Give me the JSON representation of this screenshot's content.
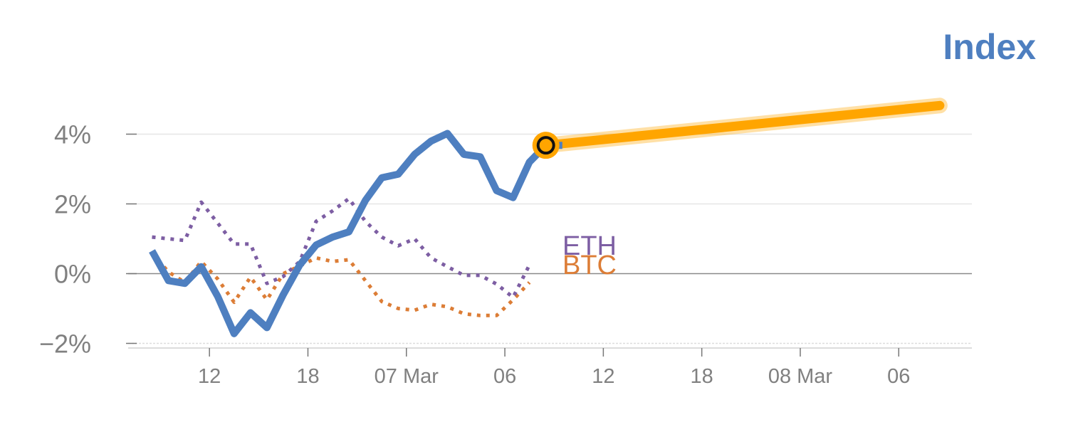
{
  "chart_data": {
    "type": "line",
    "title": "Index",
    "xlabel": "",
    "ylabel": "",
    "ylim": [
      -2.05,
      4.1
    ],
    "y_ticks": [
      4,
      2,
      0,
      -2
    ],
    "y_tick_labels": [
      "4%",
      "2%",
      "0%",
      "−2%"
    ],
    "x_ticks": [
      5,
      11,
      17,
      23,
      29,
      35,
      41,
      47,
      53
    ],
    "x_tick_labels": [
      "12",
      "18",
      "07 Mar",
      "06",
      "12",
      "18",
      "08 Mar",
      "06"
    ],
    "xlim": [
      0,
      51
    ],
    "grid": true,
    "legend": "none",
    "colors": {
      "index": "#4e7fc0",
      "forecast": "#ffa500",
      "eth": "#7d5ea3",
      "btc": "#dc7d36",
      "axis": "#808080",
      "grid": "#e6e6e6"
    },
    "series": [
      {
        "key": "index",
        "style": "solid",
        "x": [
          1.5,
          2.5,
          3.5,
          4.5,
          5.5,
          6.5,
          7.5,
          8.5,
          9.5,
          10.5,
          11.5,
          12.5,
          13.5,
          14.5,
          15.5,
          16.5,
          17.5,
          18.5,
          19.5,
          20.5,
          21.5,
          22.5,
          23.5,
          24.5,
          25.5,
          26.5
        ],
        "values": [
          0.65,
          -0.2,
          -0.28,
          0.2,
          -0.65,
          -1.72,
          -1.12,
          -1.55,
          -0.6,
          0.25,
          0.82,
          1.05,
          1.2,
          2.1,
          2.75,
          2.85,
          3.42,
          3.8,
          4.02,
          3.42,
          3.35,
          2.38,
          2.18,
          3.2,
          3.68,
          3.68
        ]
      },
      {
        "key": "forecast",
        "style": "band",
        "x": [
          25.5,
          49.5
        ],
        "values": [
          3.68,
          4.82
        ]
      },
      {
        "name": "ETH",
        "key": "eth",
        "style": "dotted",
        "x": [
          1.5,
          2.5,
          3.5,
          4.5,
          5.5,
          6.5,
          7.5,
          8.5,
          9.5,
          10.5,
          11.5,
          12.5,
          13.5,
          14.5,
          15.5,
          16.5,
          17.5,
          18.5,
          19.5,
          20.5,
          21.5,
          22.5,
          23.5,
          24.5
        ],
        "values": [
          1.05,
          1.0,
          0.95,
          2.05,
          1.45,
          0.85,
          0.85,
          -0.28,
          -0.08,
          0.35,
          1.5,
          1.8,
          2.15,
          1.5,
          1.05,
          0.8,
          1.0,
          0.45,
          0.2,
          -0.05,
          -0.05,
          -0.3,
          -0.68,
          0.25
        ]
      },
      {
        "name": "BTC",
        "key": "btc",
        "style": "dotted",
        "x": [
          1.5,
          2.5,
          3.5,
          4.5,
          5.5,
          6.5,
          7.5,
          8.5,
          9.5,
          10.5,
          11.5,
          12.5,
          13.5,
          14.5,
          15.5,
          16.5,
          17.5,
          18.5,
          19.5,
          20.5,
          21.5,
          22.5,
          23.5,
          24.5
        ],
        "values": [
          0.6,
          0.05,
          -0.25,
          0.35,
          -0.15,
          -0.82,
          -0.1,
          -0.75,
          0.0,
          0.22,
          0.45,
          0.35,
          0.4,
          -0.2,
          -0.8,
          -1.0,
          -1.05,
          -0.88,
          -0.95,
          -1.15,
          -1.2,
          -1.2,
          -0.75,
          -0.25
        ]
      }
    ],
    "marker": {
      "x": 25.5,
      "value": 3.68
    }
  }
}
